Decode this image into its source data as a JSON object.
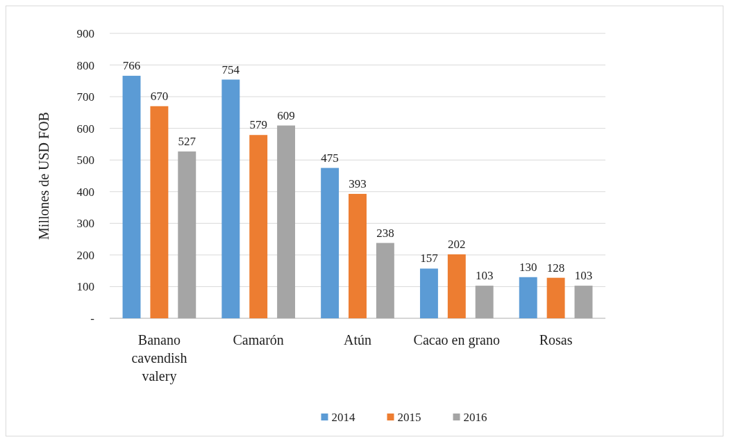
{
  "chart_data": {
    "type": "bar",
    "ylabel": "Millones de USD FOB",
    "categories": [
      "Banano cavendish valery",
      "Camarón",
      "Atún",
      "Cacao en grano",
      "Rosas"
    ],
    "series": [
      {
        "name": "2014",
        "color": "#5b9bd5",
        "values": [
          766,
          754,
          475,
          157,
          130
        ]
      },
      {
        "name": "2015",
        "color": "#ed7d31",
        "values": [
          670,
          579,
          393,
          202,
          128
        ]
      },
      {
        "name": "2016",
        "color": "#a5a5a5",
        "values": [
          527,
          609,
          238,
          103,
          103
        ]
      }
    ],
    "ylim": [
      0,
      900
    ],
    "yticks": [
      {
        "value": 0,
        "label": "-"
      },
      100,
      200,
      300,
      400,
      500,
      600,
      700,
      800,
      900
    ],
    "grid": "y",
    "legend": "bottom",
    "data_labels": true
  }
}
